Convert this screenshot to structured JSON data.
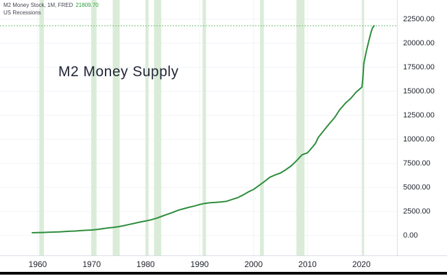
{
  "legend": {
    "series_title": "M2 Money Stock, 1M, FRED",
    "series_value": "21809.70",
    "overlay_title": "US Recessions"
  },
  "watermark": "M2 Money Supply",
  "colors": {
    "line": "#2b8c3b",
    "value_text": "#2aa138",
    "band": "#daecd8",
    "grid": "#f0f3f8",
    "dotted": "#6cc071",
    "axis_text": "#20242e"
  },
  "chart_data": {
    "type": "line",
    "title": "M2 Money Supply",
    "series_name": "M2 Money Stock, 1M, FRED",
    "legend_overlay": "US Recessions",
    "last_value": 21809.7,
    "ylabel": "",
    "xlabel": "",
    "ylim": [
      0,
      23500
    ],
    "xlim": [
      1953,
      2026.6
    ],
    "grid": true,
    "x_ticks": [
      {
        "year": 1960,
        "label": "1960"
      },
      {
        "year": 1970,
        "label": "1970"
      },
      {
        "year": 1980,
        "label": "1980"
      },
      {
        "year": 1990,
        "label": "1990"
      },
      {
        "year": 2000,
        "label": "2000"
      },
      {
        "year": 2010,
        "label": "2010"
      },
      {
        "year": 2020,
        "label": "2020"
      }
    ],
    "y_ticks": [
      {
        "value": 0,
        "label": "0.00"
      },
      {
        "value": 2500,
        "label": "2500.00"
      },
      {
        "value": 5000,
        "label": "5000.00"
      },
      {
        "value": 7500,
        "label": "7500.00"
      },
      {
        "value": 10000,
        "label": "10000.00"
      },
      {
        "value": 12500,
        "label": "12500.00"
      },
      {
        "value": 15000,
        "label": "15000.00"
      },
      {
        "value": 17500,
        "label": "17500.00"
      },
      {
        "value": 20000,
        "label": "20000.00"
      },
      {
        "value": 22500,
        "label": "22500.00"
      }
    ],
    "points": [
      [
        1959,
        287
      ],
      [
        1960,
        298
      ],
      [
        1961,
        312
      ],
      [
        1962,
        335
      ],
      [
        1963,
        357
      ],
      [
        1964,
        382
      ],
      [
        1965,
        410
      ],
      [
        1966,
        442
      ],
      [
        1967,
        467
      ],
      [
        1968,
        506
      ],
      [
        1969,
        545
      ],
      [
        1970,
        570
      ],
      [
        1971,
        632
      ],
      [
        1972,
        710
      ],
      [
        1973,
        785
      ],
      [
        1974,
        845
      ],
      [
        1975,
        920
      ],
      [
        1976,
        1030
      ],
      [
        1977,
        1160
      ],
      [
        1978,
        1280
      ],
      [
        1979,
        1400
      ],
      [
        1980,
        1510
      ],
      [
        1981,
        1630
      ],
      [
        1982,
        1790
      ],
      [
        1983,
        2000
      ],
      [
        1984,
        2200
      ],
      [
        1985,
        2400
      ],
      [
        1986,
        2620
      ],
      [
        1987,
        2780
      ],
      [
        1988,
        2930
      ],
      [
        1989,
        3060
      ],
      [
        1990,
        3220
      ],
      [
        1991,
        3340
      ],
      [
        1992,
        3410
      ],
      [
        1993,
        3440
      ],
      [
        1994,
        3490
      ],
      [
        1995,
        3560
      ],
      [
        1996,
        3740
      ],
      [
        1997,
        3920
      ],
      [
        1998,
        4200
      ],
      [
        1999,
        4520
      ],
      [
        2000,
        4790
      ],
      [
        2001,
        5200
      ],
      [
        2002,
        5600
      ],
      [
        2003,
        6050
      ],
      [
        2004,
        6300
      ],
      [
        2005,
        6500
      ],
      [
        2006,
        6850
      ],
      [
        2007,
        7250
      ],
      [
        2008,
        7800
      ],
      [
        2009,
        8400
      ],
      [
        2010,
        8600
      ],
      [
        2011,
        9250
      ],
      [
        2011.5,
        9600
      ],
      [
        2012,
        10200
      ],
      [
        2013,
        10900
      ],
      [
        2014,
        11600
      ],
      [
        2015,
        12250
      ],
      [
        2016,
        13100
      ],
      [
        2017,
        13750
      ],
      [
        2018,
        14250
      ],
      [
        2019,
        14900
      ],
      [
        2020.1,
        15450
      ],
      [
        2020.25,
        16300
      ],
      [
        2020.45,
        17900
      ],
      [
        2020.7,
        18600
      ],
      [
        2021,
        19400
      ],
      [
        2021.4,
        20300
      ],
      [
        2021.8,
        21200
      ],
      [
        2022.1,
        21650
      ],
      [
        2022.35,
        21809.7
      ]
    ],
    "recessions": [
      [
        1960.3,
        1961.15
      ],
      [
        1969.92,
        1970.9
      ],
      [
        1973.9,
        1975.2
      ],
      [
        1980.0,
        1980.55
      ],
      [
        1981.55,
        1982.9
      ],
      [
        1990.55,
        1991.2
      ],
      [
        2001.2,
        2001.9
      ],
      [
        2007.95,
        2009.45
      ],
      [
        2020.12,
        2020.3
      ]
    ]
  }
}
